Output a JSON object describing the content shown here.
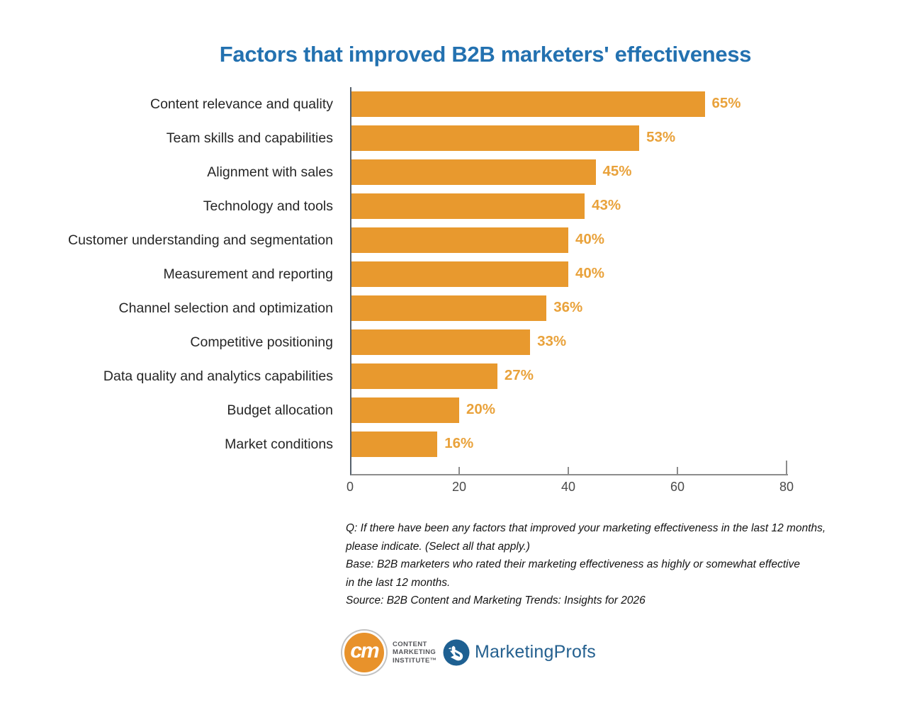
{
  "header": {
    "title": "Factors that improved B2B marketers' effectiveness"
  },
  "chart_data": {
    "type": "bar",
    "orientation": "horizontal",
    "title": "Factors that improved B2B marketers' effectiveness",
    "categories": [
      "Content relevance and quality",
      "Team skills and capabilities",
      "Alignment with sales",
      "Technology and tools",
      "Customer understanding and segmentation",
      "Measurement and reporting",
      "Channel selection and optimization",
      "Competitive positioning",
      "Data quality and analytics capabilities",
      "Budget allocation",
      "Market conditions"
    ],
    "values": [
      65,
      53,
      45,
      43,
      40,
      40,
      36,
      33,
      27,
      20,
      16
    ],
    "value_labels": [
      "65%",
      "53%",
      "45%",
      "43%",
      "40%",
      "40%",
      "36%",
      "33%",
      "27%",
      "20%",
      "16%"
    ],
    "xlabel": "",
    "ylabel": "",
    "xlim": [
      0,
      80
    ],
    "x_ticks": [
      0,
      20,
      40,
      60,
      80
    ],
    "grid": false,
    "legend": false
  },
  "footnotes": {
    "lines": [
      "Q: If there have been any factors that improved your marketing effectiveness in the last 12 months,",
      "please indicate. (Select all that apply.)",
      "Base: B2B marketers who rated their marketing effectiveness as highly or somewhat effective",
      "in the last 12 months.",
      "Source: B2B Content and Marketing Trends: Insights for 2026"
    ]
  },
  "logos": {
    "cmi": {
      "monogram": "cm",
      "lines": [
        "CONTENT",
        "MARKETING",
        "INSTITUTE™"
      ]
    },
    "marketingprofs": {
      "name": "MarketingProfs"
    }
  },
  "colors": {
    "title": "#2371b0",
    "bar": "#e8992e",
    "value_label": "#e9a23b",
    "category_label": "#262626",
    "axis_line": "#8c8c8c",
    "y_axis_line": "#55606c",
    "tick_label": "#4a4a4a",
    "footnote": "#141414",
    "cmi_orange": "#e8922b",
    "mp_blue": "#24608f"
  }
}
